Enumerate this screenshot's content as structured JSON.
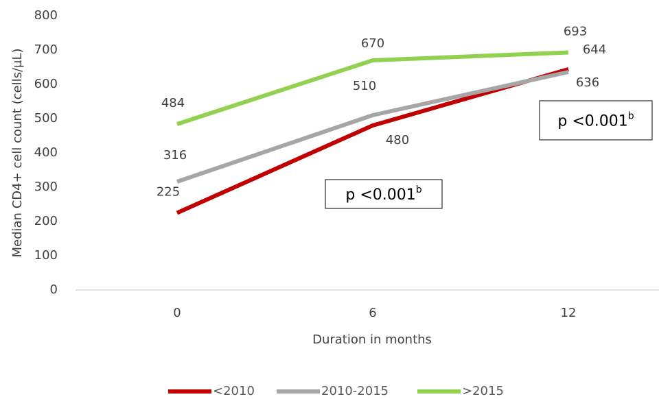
{
  "chart_data": {
    "type": "line",
    "y_label": "Median CD4+ cell count (cells/µL)",
    "x_label": "Duration in months",
    "categories": [
      "0",
      "6",
      "12"
    ],
    "series": [
      {
        "name": "<2010",
        "color": "#c00000",
        "values": [
          225,
          480,
          644
        ]
      },
      {
        "name": "2010-2015",
        "color": "#a6a6a6",
        "values": [
          316,
          510,
          636
        ]
      },
      {
        "name": ">2015",
        "color": "#92d050",
        "values": [
          484,
          670,
          693
        ]
      }
    ],
    "ylim": [
      0,
      800
    ],
    "yticks": [
      0,
      100,
      200,
      300,
      400,
      500,
      600,
      700,
      800
    ],
    "annotations": [
      {
        "text": "p <0.001",
        "sup": "b"
      },
      {
        "text": "p <0.001",
        "sup": "b"
      }
    ],
    "legend": "bottom"
  }
}
